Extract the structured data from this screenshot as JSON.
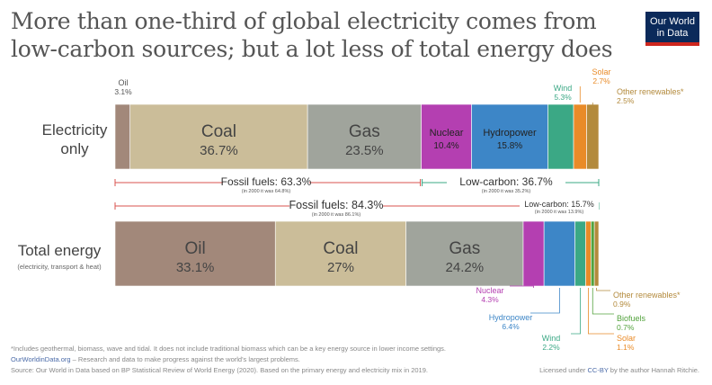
{
  "title": "More than one-third of global electricity comes from low-carbon sources; but a lot less of total energy does",
  "logo": {
    "line1": "Our World",
    "line2": "in Data"
  },
  "footer": {
    "note": "*Includes geothermal, biomass, wave and tidal. It does not include traditional biomass which can be a key energy source in lower income settings.",
    "site": "OurWorldinData.org",
    "tagline": " – Research and data to make progress against the world's largest problems.",
    "source": "Source: Our World in Data based on BP Statistical Review of World Energy (2020). Based on the primary energy and electricity mix in 2019.",
    "license_pre": "Licensed under ",
    "license_link": "CC-BY",
    "license_post": " by the author Hannah Ritchie."
  },
  "chart_data": {
    "type": "bar",
    "orientation": "horizontal",
    "stacked": "100%",
    "rows": [
      {
        "label": "Electricity only",
        "segments": [
          {
            "name": "Oil",
            "value": 3.1,
            "label": "3.1%",
            "color": "#a2887a"
          },
          {
            "name": "Coal",
            "value": 36.7,
            "label": "36.7%",
            "color": "#cbbd99"
          },
          {
            "name": "Gas",
            "value": 23.5,
            "label": "23.5%",
            "color": "#a0a49c"
          },
          {
            "name": "Nuclear",
            "value": 10.4,
            "label": "10.4%",
            "color": "#b43fb1"
          },
          {
            "name": "Hydropower",
            "value": 15.8,
            "label": "15.8%",
            "color": "#3d86c7"
          },
          {
            "name": "Wind",
            "value": 5.3,
            "label": "5.3%",
            "color": "#3ba885"
          },
          {
            "name": "Solar",
            "value": 2.7,
            "label": "2.7%",
            "color": "#e98b28"
          },
          {
            "name": "Other renewables*",
            "value": 2.5,
            "label": "2.5%",
            "color": "#b38a3c"
          }
        ],
        "groups": [
          {
            "label": "Fossil fuels: 63.3%",
            "note": "(in 2000 it was 64.8%)"
          },
          {
            "label": "Low-carbon: 36.7%",
            "note": "(in 2000 it was 35.2%)"
          }
        ]
      },
      {
        "label": "Total energy",
        "sublabel": "(electricity, transport & heat)",
        "segments": [
          {
            "name": "Oil",
            "value": 33.1,
            "label": "33.1%",
            "color": "#a2887a"
          },
          {
            "name": "Coal",
            "value": 27,
            "label": "27%",
            "color": "#cbbd99"
          },
          {
            "name": "Gas",
            "value": 24.2,
            "label": "24.2%",
            "color": "#a0a49c"
          },
          {
            "name": "Nuclear",
            "value": 4.3,
            "label": "4.3%",
            "color": "#b43fb1"
          },
          {
            "name": "Hydropower",
            "value": 6.4,
            "label": "6.4%",
            "color": "#3d86c7"
          },
          {
            "name": "Wind",
            "value": 2.2,
            "label": "2.2%",
            "color": "#3ba885"
          },
          {
            "name": "Solar",
            "value": 1.1,
            "label": "1.1%",
            "color": "#e98b28"
          },
          {
            "name": "Biofuels",
            "value": 0.7,
            "label": "0.7%",
            "color": "#53a23d"
          },
          {
            "name": "Other renewables*",
            "value": 0.9,
            "label": "0.9%",
            "color": "#b38a3c"
          }
        ],
        "groups": [
          {
            "label": "Fossil fuels: 84.3%",
            "note": "(in 2000 it was 86.1%)"
          },
          {
            "label": "Low-carbon: 15.7%",
            "note": "(in 2000 it was 13.9%)"
          }
        ]
      }
    ],
    "colors": {
      "fossil_bracket": "#d9534f",
      "lowcarbon_bracket": "#3ba885"
    }
  }
}
